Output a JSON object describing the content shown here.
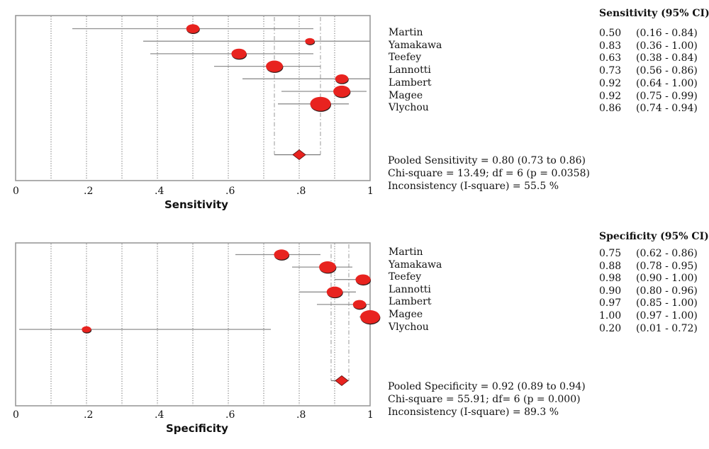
{
  "colors": {
    "point": "#e8231f",
    "ci_line": "#8f8f8f",
    "grid": "#666666",
    "frame": "#999999",
    "pooled_line": "#a9a9a9"
  },
  "chart_data": [
    {
      "type": "forest",
      "xlabel": "Sensitivity",
      "xlim": [
        0,
        1
      ],
      "xticks": [
        "0",
        ".2",
        ".4",
        ".6",
        ".8",
        "1"
      ],
      "gridlines": [
        0.1,
        0.2,
        0.3,
        0.4,
        0.5,
        0.6,
        0.7,
        0.8,
        0.9
      ],
      "header": "Sensitivity (95% CI)",
      "studies": [
        "Martin",
        "Yamakawa",
        "Teefey",
        "Lannotti",
        "Lambert",
        "Magee",
        "Vlychou"
      ],
      "estimates": [
        0.5,
        0.83,
        0.63,
        0.73,
        0.92,
        0.92,
        0.86
      ],
      "lower": [
        0.16,
        0.36,
        0.38,
        0.56,
        0.64,
        0.75,
        0.74
      ],
      "upper": [
        0.84,
        1.0,
        0.84,
        0.86,
        1.0,
        0.99,
        0.94
      ],
      "estimate_labels": [
        "0.50",
        "0.83",
        "0.63",
        "0.73",
        "0.92",
        "0.92",
        "0.86"
      ],
      "ci_labels": [
        "(0.16 - 0.84)",
        "(0.36 - 1.00)",
        "(0.38 - 0.84)",
        "(0.56 - 0.86)",
        "(0.64 - 1.00)",
        "(0.75 - 0.99)",
        "(0.74 - 0.94)"
      ],
      "weights": [
        1.6,
        0.8,
        2.0,
        2.4,
        1.6,
        2.4,
        3.2
      ],
      "pooled": {
        "estimate": 0.8,
        "lower": 0.73,
        "upper": 0.86
      },
      "stats": [
        "Pooled Sensitivity = 0.80 (0.73 to 0.86)",
        "Chi-square = 13.49; df = 6 (p = 0.0358)",
        "Inconsistency (I-square) = 55.5 %"
      ]
    },
    {
      "type": "forest",
      "xlabel": "Specificity",
      "xlim": [
        0,
        1
      ],
      "xticks": [
        "0",
        ".2",
        ".4",
        ".6",
        ".8",
        "1"
      ],
      "gridlines": [
        0.1,
        0.2,
        0.3,
        0.4,
        0.5,
        0.6,
        0.7,
        0.8,
        0.9
      ],
      "header": "Specificity (95% CI)",
      "studies": [
        "Martin",
        "Yamakawa",
        "Teefey",
        "Lannotti",
        "Lambert",
        "Magee",
        "Vlychou"
      ],
      "estimates": [
        0.75,
        0.88,
        0.98,
        0.9,
        0.97,
        1.0,
        0.2
      ],
      "lower": [
        0.62,
        0.78,
        0.9,
        0.8,
        0.85,
        0.97,
        0.01
      ],
      "upper": [
        0.86,
        0.95,
        1.0,
        0.96,
        1.0,
        1.0,
        0.72
      ],
      "estimate_labels": [
        "0.75",
        "0.88",
        "0.98",
        "0.90",
        "0.97",
        "1.00",
        "0.20"
      ],
      "ci_labels": [
        "(0.62 - 0.86)",
        "(0.78 - 0.95)",
        "(0.90 - 1.00)",
        "(0.80 - 0.96)",
        "(0.85 - 1.00)",
        "(0.97 - 1.00)",
        "(0.01 - 0.72)"
      ],
      "weights": [
        2.0,
        2.4,
        2.0,
        2.2,
        1.6,
        3.0,
        0.8
      ],
      "pooled": {
        "estimate": 0.92,
        "lower": 0.89,
        "upper": 0.94
      },
      "stats": [
        "Pooled Specificity = 0.92 (0.89 to 0.94)",
        "Chi-square = 55.91; df= 6 (p = 0.000)",
        "Inconsistency (I-square) = 89.3 %"
      ]
    }
  ]
}
